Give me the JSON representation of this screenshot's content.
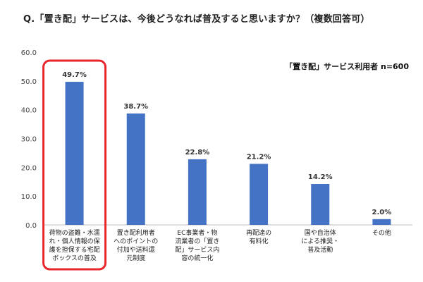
{
  "page": {
    "title": "Q.「置き配」サービスは、今後どうなれば普及すると思いますか？（複数回答可）"
  },
  "chart_data": {
    "type": "bar",
    "subtitle": "「置き配」サービス利用者 n=600",
    "ylim": [
      0,
      60
    ],
    "yticks": [
      "0.0",
      "10.0",
      "20.0",
      "30.0",
      "40.0",
      "50.0",
      "60.0"
    ],
    "categories": [
      [
        "荷物の盗難・水濡",
        "れ・個人情報の保",
        "護を担保する宅配",
        "ボックスの普及"
      ],
      [
        "置き配利用者",
        "へのポイントの",
        "付加や送料還",
        "元制度"
      ],
      [
        "EC事業者・物",
        "流業者の「置き",
        "配」サービス内",
        "容の統一化"
      ],
      [
        "再配達の",
        "有料化"
      ],
      [
        "国や自治体",
        "による推奨・",
        "普及活動"
      ],
      [
        "その他"
      ]
    ],
    "values": [
      49.7,
      38.7,
      22.8,
      21.2,
      14.2,
      2.0
    ],
    "data_labels": [
      "49.7%",
      "38.7%",
      "22.8%",
      "21.2%",
      "14.2%",
      "2.0%"
    ],
    "bar_color": "#4472c4",
    "highlight_color": "#e8262b",
    "highlight_index": 0
  }
}
